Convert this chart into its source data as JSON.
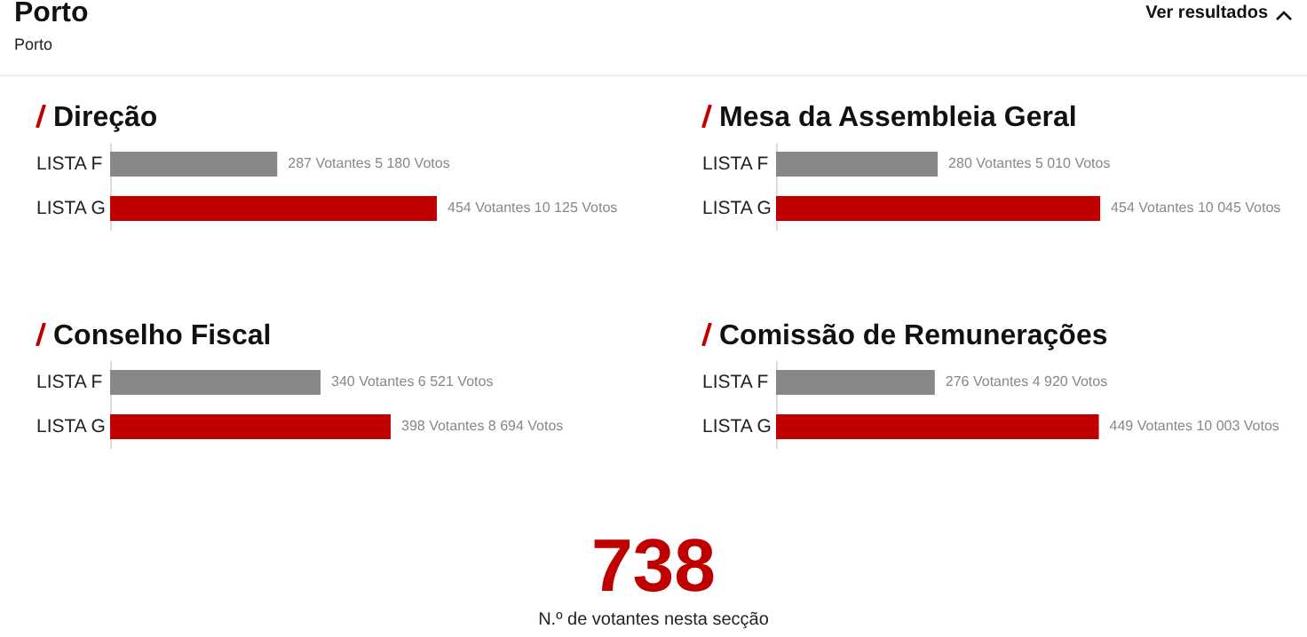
{
  "chart_data": [
    {
      "type": "other",
      "title": "Porto",
      "subtitle": "Porto",
      "annotations": [
        "Ver resultados"
      ]
    },
    {
      "type": "bar",
      "orientation": "horizontal",
      "title": "Direção",
      "categories": [
        "LISTA F",
        "LISTA G"
      ],
      "values": [
        5180,
        10125
      ],
      "colors": [
        "#888888",
        "#c00000"
      ],
      "value_labels": [
        "287 Votantes  5 180 Votos",
        "454 Votantes  10 125 Votos"
      ]
    },
    {
      "type": "bar",
      "orientation": "horizontal",
      "title": "Mesa da Assembleia Geral",
      "categories": [
        "LISTA F",
        "LISTA G"
      ],
      "values": [
        5010,
        10045
      ],
      "colors": [
        "#888888",
        "#c00000"
      ],
      "value_labels": [
        "280 Votantes  5 010 Votos",
        "454 Votantes  10 045 Votos"
      ]
    },
    {
      "type": "bar",
      "orientation": "horizontal",
      "title": "Conselho Fiscal",
      "categories": [
        "LISTA F",
        "LISTA G"
      ],
      "values": [
        6521,
        8694
      ],
      "colors": [
        "#888888",
        "#c00000"
      ],
      "value_labels": [
        "340 Votantes  6 521 Votos",
        "398 Votantes  8 694 Votos"
      ]
    },
    {
      "type": "bar",
      "orientation": "horizontal",
      "title": "Comissão de Remunerações",
      "categories": [
        "LISTA F",
        "LISTA G"
      ],
      "values": [
        4920,
        10003
      ],
      "colors": [
        "#888888",
        "#c00000"
      ],
      "value_labels": [
        "276 Votantes  4 920 Votos",
        "449 Votantes  10 003 Votos"
      ]
    },
    {
      "type": "other",
      "title": "738",
      "subtitle": "N.º de votantes nesta secção"
    }
  ]
}
